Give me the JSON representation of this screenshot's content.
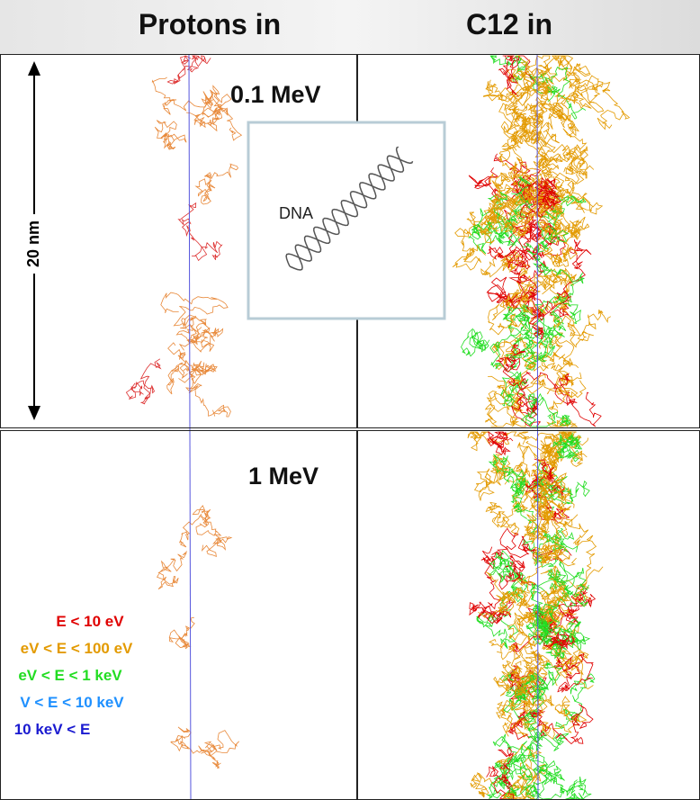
{
  "header": {
    "left": "Protons in",
    "right": "C12 in"
  },
  "panels": {
    "top_energy": "0.1 MeV",
    "bottom_energy": "1 MeV"
  },
  "scale_label": "20 nm",
  "inset_label": "DNA",
  "legend": [
    "E < 10 eV",
    "eV < E < 100 eV",
    "eV < E < 1 keV",
    "V < E  < 10 keV",
    "10 keV < E"
  ]
}
